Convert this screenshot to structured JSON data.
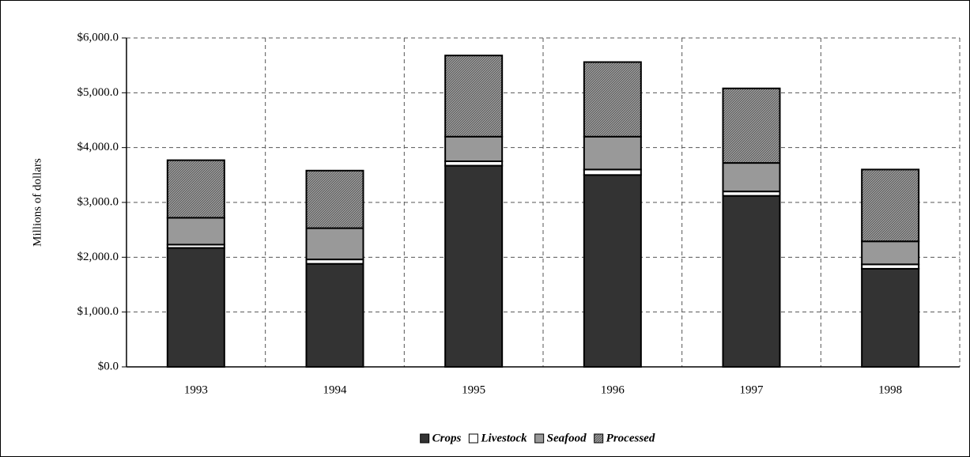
{
  "chart_data": {
    "type": "stacked_bar",
    "y_label": "Millions of dollars",
    "categories": [
      "1993",
      "1994",
      "1995",
      "1996",
      "1997",
      "1998"
    ],
    "series": [
      {
        "name": "Crops",
        "color": "#333333",
        "values": [
          2170,
          1880,
          3670,
          3500,
          3120,
          1790
        ]
      },
      {
        "name": "Livestock",
        "color": "#ffffff",
        "values": [
          60,
          80,
          80,
          100,
          80,
          80
        ]
      },
      {
        "name": "Seafood",
        "color": "#999999",
        "values": [
          490,
          570,
          450,
          600,
          520,
          420
        ]
      },
      {
        "name": "Processed",
        "color": "#555555",
        "pattern": "hatch",
        "values": [
          1050,
          1050,
          1480,
          1360,
          1360,
          1310
        ]
      }
    ],
    "ylim": [
      0,
      6000
    ],
    "yticks": [
      {
        "value": 0,
        "label": "$0.0"
      },
      {
        "value": 1000,
        "label": "$1,000.0"
      },
      {
        "value": 2000,
        "label": "$2,000.0"
      },
      {
        "value": 3000,
        "label": "$3,000.0"
      },
      {
        "value": 4000,
        "label": "$4,000.0"
      },
      {
        "value": 5000,
        "label": "$5,000.0"
      },
      {
        "value": 6000,
        "label": "$6,000.0"
      }
    ],
    "grid": true,
    "legend": "bottom"
  }
}
